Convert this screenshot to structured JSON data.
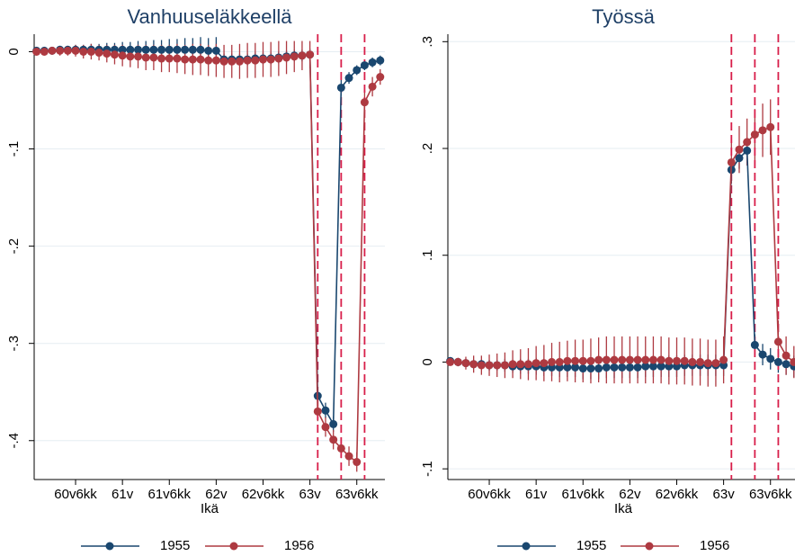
{
  "chart_data": [
    {
      "type": "line",
      "title": "Vanhuuseläkkeellä",
      "x_label": "Ikä",
      "x": [
        1,
        2,
        3,
        4,
        5,
        6,
        7,
        8,
        9,
        10,
        11,
        12,
        13,
        14,
        15,
        16,
        17,
        18,
        19,
        20,
        21,
        22,
        23,
        24,
        25,
        26,
        27,
        28,
        29,
        30,
        31,
        32,
        33,
        34,
        35,
        36,
        37,
        38,
        39,
        40,
        41,
        42,
        43,
        44,
        45
      ],
      "xlim": [
        0.7,
        45.6
      ],
      "xticks": [
        {
          "value": 6,
          "label": "60v6kk"
        },
        {
          "value": 12,
          "label": "61v"
        },
        {
          "value": 18,
          "label": "61v6kk"
        },
        {
          "value": 24,
          "label": "62v"
        },
        {
          "value": 30,
          "label": "62v6kk"
        },
        {
          "value": 36,
          "label": "63v"
        },
        {
          "value": 42,
          "label": "63v6kk"
        }
      ],
      "ylim": [
        -0.44,
        0.018
      ],
      "yticks": [
        0,
        {
          "value": -0.1,
          "label": "-.1"
        },
        {
          "value": -0.2,
          "label": "-.2"
        },
        {
          "value": -0.3,
          "label": "-.3"
        },
        {
          "value": -0.4,
          "label": "-.4"
        }
      ],
      "grid": true,
      "reference_lines": [
        37,
        40,
        43
      ],
      "reference_color": "#d81e4a",
      "series": [
        {
          "name": "1955",
          "color": "#1a476f",
          "values": [
            0.001,
            0.001,
            0.001,
            0.002,
            0.002,
            0.002,
            0.002,
            0.002,
            0.002,
            0.002,
            0.002,
            0.002,
            0.002,
            0.002,
            0.002,
            0.002,
            0.002,
            0.002,
            0.002,
            0.002,
            0.002,
            0.002,
            0.001,
            0.001,
            -0.008,
            -0.008,
            -0.008,
            -0.008,
            -0.007,
            -0.007,
            -0.007,
            -0.006,
            -0.005,
            -0.004,
            -0.004,
            -0.003,
            -0.354,
            -0.369,
            -0.383,
            -0.037,
            -0.027,
            -0.019,
            -0.014,
            -0.011,
            -0.009
          ],
          "errors": [
            0.002,
            0.003,
            0.003,
            0.004,
            0.004,
            0.005,
            0.005,
            0.006,
            0.006,
            0.007,
            0.007,
            0.008,
            0.008,
            0.009,
            0.009,
            0.01,
            0.01,
            0.011,
            0.011,
            0.012,
            0.012,
            0.013,
            0.013,
            0.014,
            0.006,
            0.006,
            0.006,
            0.006,
            0.006,
            0.006,
            0.006,
            0.006,
            0.006,
            0.006,
            0.006,
            0.006,
            0.008,
            0.008,
            0.008,
            0.008,
            0.006,
            0.005,
            0.005,
            0.005,
            0.005
          ]
        },
        {
          "name": "1956",
          "color": "#ae3a41",
          "values": [
            0,
            0,
            0.001,
            0.001,
            0.001,
            0.001,
            0,
            0,
            -0.001,
            -0.002,
            -0.003,
            -0.004,
            -0.005,
            -0.005,
            -0.006,
            -0.006,
            -0.007,
            -0.007,
            -0.007,
            -0.008,
            -0.008,
            -0.008,
            -0.009,
            -0.009,
            -0.01,
            -0.01,
            -0.01,
            -0.009,
            -0.009,
            -0.008,
            -0.008,
            -0.007,
            -0.006,
            -0.005,
            -0.004,
            -0.003,
            -0.37,
            -0.386,
            -0.399,
            -0.408,
            -0.416,
            -0.422,
            -0.052,
            -0.036,
            -0.026
          ],
          "errors": [
            0.002,
            0.003,
            0.004,
            0.005,
            0.005,
            0.006,
            0.007,
            0.008,
            0.008,
            0.009,
            0.01,
            0.011,
            0.011,
            0.012,
            0.013,
            0.013,
            0.014,
            0.014,
            0.015,
            0.015,
            0.016,
            0.016,
            0.016,
            0.017,
            0.017,
            0.017,
            0.018,
            0.018,
            0.018,
            0.018,
            0.018,
            0.018,
            0.017,
            0.016,
            0.015,
            0.014,
            0.01,
            0.01,
            0.01,
            0.01,
            0.01,
            0.01,
            0.012,
            0.01,
            0.008
          ]
        }
      ]
    },
    {
      "type": "line",
      "title": "Työssä",
      "x_label": "Ikä",
      "x": [
        1,
        2,
        3,
        4,
        5,
        6,
        7,
        8,
        9,
        10,
        11,
        12,
        13,
        14,
        15,
        16,
        17,
        18,
        19,
        20,
        21,
        22,
        23,
        24,
        25,
        26,
        27,
        28,
        29,
        30,
        31,
        32,
        33,
        34,
        35,
        36,
        37,
        38,
        39,
        40,
        41,
        42,
        43,
        44,
        45
      ],
      "xlim": [
        0.7,
        45.6
      ],
      "xticks": [
        {
          "value": 6,
          "label": "60v6kk"
        },
        {
          "value": 12,
          "label": "61v"
        },
        {
          "value": 18,
          "label": "61v6kk"
        },
        {
          "value": 24,
          "label": "62v"
        },
        {
          "value": 30,
          "label": "62v6kk"
        },
        {
          "value": 36,
          "label": "63v"
        },
        {
          "value": 42,
          "label": "63v6kk"
        }
      ],
      "ylim": [
        -0.11,
        0.307
      ],
      "yticks": [
        {
          "value": -0.1,
          "label": "-.1"
        },
        0,
        {
          "value": 0.1,
          "label": ".1"
        },
        {
          "value": 0.2,
          "label": ".2"
        },
        {
          "value": 0.3,
          "label": ".3"
        }
      ],
      "grid": true,
      "reference_lines": [
        37,
        40,
        43
      ],
      "reference_color": "#d81e4a",
      "series": [
        {
          "name": "1955",
          "color": "#1a476f",
          "values": [
            0.001,
            0,
            -0.001,
            -0.002,
            -0.002,
            -0.003,
            -0.003,
            -0.003,
            -0.004,
            -0.004,
            -0.004,
            -0.004,
            -0.005,
            -0.005,
            -0.005,
            -0.005,
            -0.005,
            -0.006,
            -0.006,
            -0.006,
            -0.005,
            -0.005,
            -0.005,
            -0.005,
            -0.005,
            -0.004,
            -0.004,
            -0.004,
            -0.004,
            -0.004,
            -0.003,
            -0.003,
            -0.003,
            -0.003,
            -0.003,
            -0.003,
            0.18,
            0.191,
            0.198,
            0.016,
            0.007,
            0.003,
            0,
            -0.002,
            -0.004
          ],
          "errors": [
            0.001,
            0.002,
            0.003,
            0.004,
            0.004,
            0.005,
            0.005,
            0.006,
            0.006,
            0.007,
            0.007,
            0.008,
            0.008,
            0.008,
            0.009,
            0.009,
            0.009,
            0.01,
            0.01,
            0.01,
            0.01,
            0.01,
            0.01,
            0.01,
            0.01,
            0.01,
            0.01,
            0.01,
            0.01,
            0.01,
            0.01,
            0.01,
            0.01,
            0.01,
            0.01,
            0.01,
            0.01,
            0.01,
            0.012,
            0.01,
            0.01,
            0.01,
            0.01,
            0.01,
            0.01
          ]
        },
        {
          "name": "1956",
          "color": "#ae3a41",
          "values": [
            0,
            0,
            -0.001,
            -0.002,
            -0.003,
            -0.003,
            -0.003,
            -0.003,
            -0.002,
            -0.002,
            -0.002,
            -0.001,
            -0.001,
            0,
            0,
            0.001,
            0.001,
            0.001,
            0.001,
            0.002,
            0.002,
            0.002,
            0.002,
            0.002,
            0.002,
            0.002,
            0.002,
            0.002,
            0.001,
            0.001,
            0.001,
            0,
            0,
            -0.001,
            -0.001,
            0.002,
            0.187,
            0.199,
            0.206,
            0.213,
            0.217,
            0.22,
            0.019,
            0.006,
            0
          ],
          "errors": [
            0.002,
            0.004,
            0.006,
            0.008,
            0.009,
            0.01,
            0.011,
            0.012,
            0.013,
            0.014,
            0.015,
            0.016,
            0.017,
            0.018,
            0.019,
            0.019,
            0.02,
            0.02,
            0.021,
            0.021,
            0.022,
            0.022,
            0.022,
            0.022,
            0.022,
            0.022,
            0.022,
            0.022,
            0.022,
            0.022,
            0.022,
            0.022,
            0.022,
            0.022,
            0.022,
            0.022,
            0.02,
            0.022,
            0.022,
            0.024,
            0.025,
            0.026,
            0.02,
            0.018,
            0.015
          ]
        }
      ]
    }
  ]
}
